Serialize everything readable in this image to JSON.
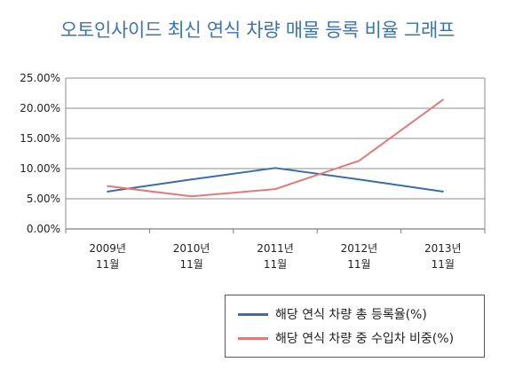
{
  "chart_data": {
    "type": "line",
    "title": "오토인사이드 최신 연식 차량 매물 등록 비율 그래프",
    "categories": [
      "2009년\n11월",
      "2010년\n11월",
      "2011년\n11월",
      "2012년\n11월",
      "2013년\n11월"
    ],
    "y_ticks": [
      "0.00%",
      "5.00%",
      "10.00%",
      "15.00%",
      "20.00%",
      "25.00%"
    ],
    "ylim": [
      0,
      25
    ],
    "grid": true,
    "legend_position": "bottom-right",
    "series": [
      {
        "name": "해당 연식 차량 총 등록율(%)",
        "color": "#3a6ea8",
        "values": [
          6.2,
          8.2,
          10.1,
          8.2,
          6.2
        ]
      },
      {
        "name": "해당 연식 차량 중 수입차 비중(%)",
        "color": "#e07b7b",
        "values": [
          7.1,
          5.4,
          6.6,
          11.3,
          21.4
        ]
      }
    ]
  }
}
